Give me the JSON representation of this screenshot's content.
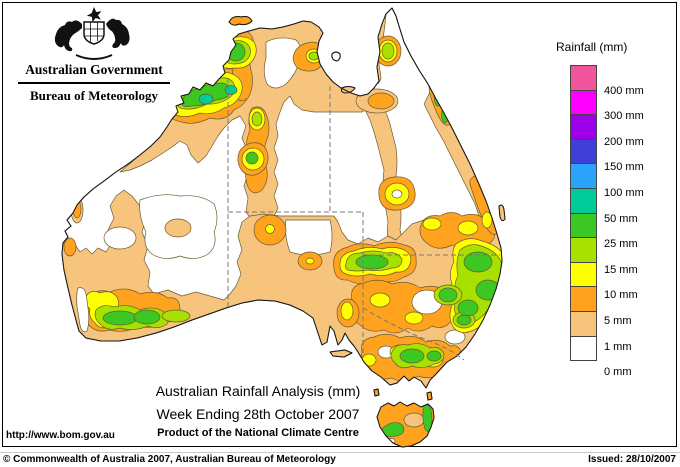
{
  "header": {
    "line1": "Australian Government",
    "line2": "Bureau of Meteorology"
  },
  "legend": {
    "title": "Rainfall (mm)",
    "entries": [
      {
        "label": "400 mm",
        "color": "#f0559e"
      },
      {
        "label": "300 mm",
        "color": "#ff00ff"
      },
      {
        "label": "200 mm",
        "color": "#9d00e8"
      },
      {
        "label": "150 mm",
        "color": "#4040d9"
      },
      {
        "label": "100 mm",
        "color": "#2aa4fa"
      },
      {
        "label": "50 mm",
        "color": "#00cc99"
      },
      {
        "label": "25 mm",
        "color": "#3dc723"
      },
      {
        "label": "15 mm",
        "color": "#a8e000"
      },
      {
        "label": "10 mm",
        "color": "#ffff00"
      },
      {
        "label": "5 mm",
        "color": "#ffa21e"
      },
      {
        "label": "1 mm",
        "color": "#f7c47d"
      },
      {
        "label": "0 mm",
        "color": "#ffffff"
      }
    ]
  },
  "titles": {
    "line1": "Australian Rainfall Analysis (mm)",
    "line2": "Week Ending 28th October 2007",
    "line3": "Product of the National Climate Centre"
  },
  "footer": {
    "url": "http://www.bom.gov.au",
    "copyright": "© Commonwealth of Australia 2007, Australian Bureau of Meteorology",
    "issued": "Issued: 28/10/2007"
  },
  "map": {
    "region": "Australia",
    "rainfall_levels_mm": [
      0,
      1,
      5,
      10,
      15,
      25,
      50,
      100,
      150,
      200,
      300,
      400
    ],
    "palette": {
      "white": "#ffffff",
      "tan": "#f7c47d",
      "orange": "#ffa21e",
      "yellow": "#ffff00",
      "yellowgreen": "#a8e000",
      "green": "#3dc723",
      "teal": "#00cc99"
    }
  }
}
